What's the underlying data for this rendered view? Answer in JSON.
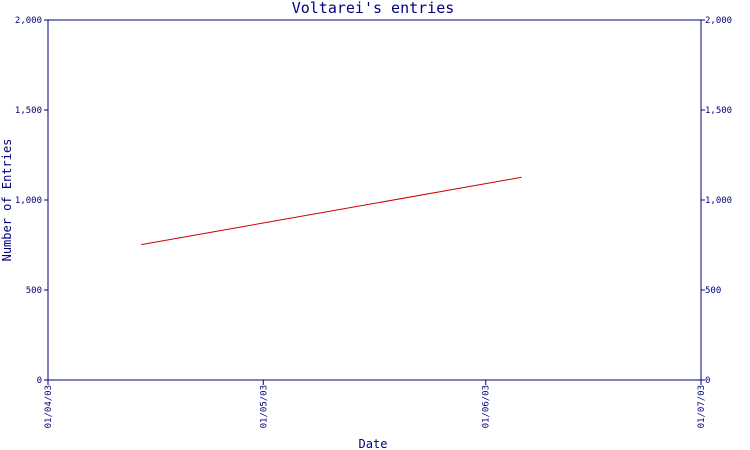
{
  "chart_data": {
    "type": "line",
    "title": "Voltarei's entries",
    "xlabel": "Date",
    "ylabel": "Number of Entries",
    "ylim": [
      0,
      2000
    ],
    "xlim": [
      "2003-04-01",
      "2003-07-01"
    ],
    "y_ticks": [
      0,
      500,
      1000,
      1500,
      2000
    ],
    "y_tick_labels": [
      "0",
      "500",
      "1,000",
      "1,500",
      "2,000"
    ],
    "x_ticks": [
      "2003-04-01",
      "2003-05-01",
      "2003-06-01",
      "2003-07-01"
    ],
    "x_tick_labels": [
      "01/04/03",
      "01/05/03",
      "01/06/03",
      "01/07/03"
    ],
    "grid": false,
    "mirror_y_axis_right": true,
    "series": [
      {
        "color": "#cc0000",
        "x": [
          "2003-04-14",
          "2003-06-06"
        ],
        "y": [
          752,
          1126
        ]
      }
    ]
  },
  "colors": {
    "axis": "#000080",
    "line": "#cc0000",
    "background": "#ffffff"
  }
}
